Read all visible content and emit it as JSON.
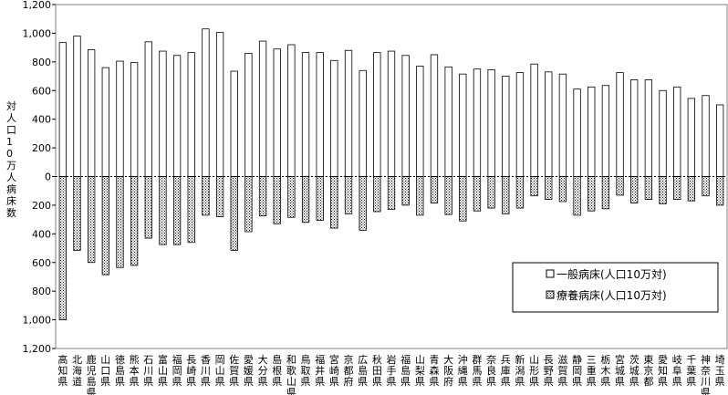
{
  "chart_data": {
    "type": "bar",
    "title": "",
    "ylabel": "対人口10万人病床数",
    "ylim": [
      -1200,
      1200
    ],
    "y_ticks": [
      1200,
      1000,
      800,
      600,
      400,
      200,
      0,
      200,
      400,
      600,
      800,
      1000,
      1200
    ],
    "y_tick_labels": [
      "1,200",
      "1,000",
      "800",
      "600",
      "400",
      "200",
      "0",
      "200",
      "400",
      "600",
      "800",
      "1,000",
      "1,200"
    ],
    "grid": false,
    "legend": {
      "placement": "bottom-right",
      "entries": [
        "一般病床(人口10万対)",
        "療養病床(人口10万対)"
      ]
    },
    "categories": [
      "高知県",
      "北海道",
      "鹿児島県",
      "山口県",
      "徳島県",
      "熊本県",
      "石川県",
      "富山県",
      "福岡県",
      "長崎県",
      "香川県",
      "岡山県",
      "佐賀県",
      "愛媛県",
      "大分県",
      "島根県",
      "和歌山県",
      "鳥取県",
      "福井県",
      "宮崎県",
      "京都府",
      "広島県",
      "秋田県",
      "岩手県",
      "福島県",
      "山梨県",
      "青森県",
      "大阪府",
      "沖縄県",
      "群馬県",
      "奈良県",
      "兵庫県",
      "新潟県",
      "山形県",
      "長野県",
      "滋賀県",
      "静岡県",
      "三重県",
      "栃木県",
      "宮城県",
      "茨城県",
      "東京都",
      "愛知県",
      "岐阜県",
      "千葉県",
      "神奈川県",
      "埼玉県"
    ],
    "series": [
      {
        "name": "一般病床(人口10万対)",
        "color": "#ffffff",
        "values": [
          935,
          980,
          885,
          760,
          805,
          795,
          940,
          875,
          845,
          865,
          1030,
          1005,
          735,
          860,
          945,
          890,
          920,
          865,
          865,
          810,
          880,
          740,
          865,
          875,
          845,
          770,
          850,
          765,
          715,
          750,
          745,
          700,
          725,
          785,
          730,
          715,
          610,
          625,
          635,
          725,
          675,
          675,
          600,
          625,
          545,
          565,
          500
        ]
      },
      {
        "name": "療養病床(人口10万対)",
        "color": "#bbbbbb",
        "values": [
          -1000,
          -515,
          -600,
          -685,
          -635,
          -620,
          -430,
          -475,
          -475,
          -460,
          -270,
          -280,
          -515,
          -385,
          -275,
          -330,
          -285,
          -320,
          -305,
          -360,
          -260,
          -375,
          -245,
          -230,
          -200,
          -270,
          -185,
          -265,
          -310,
          -240,
          -220,
          -260,
          -220,
          -135,
          -160,
          -175,
          -270,
          -240,
          -225,
          -130,
          -185,
          -160,
          -190,
          -160,
          -170,
          -135,
          -200
        ]
      }
    ]
  }
}
